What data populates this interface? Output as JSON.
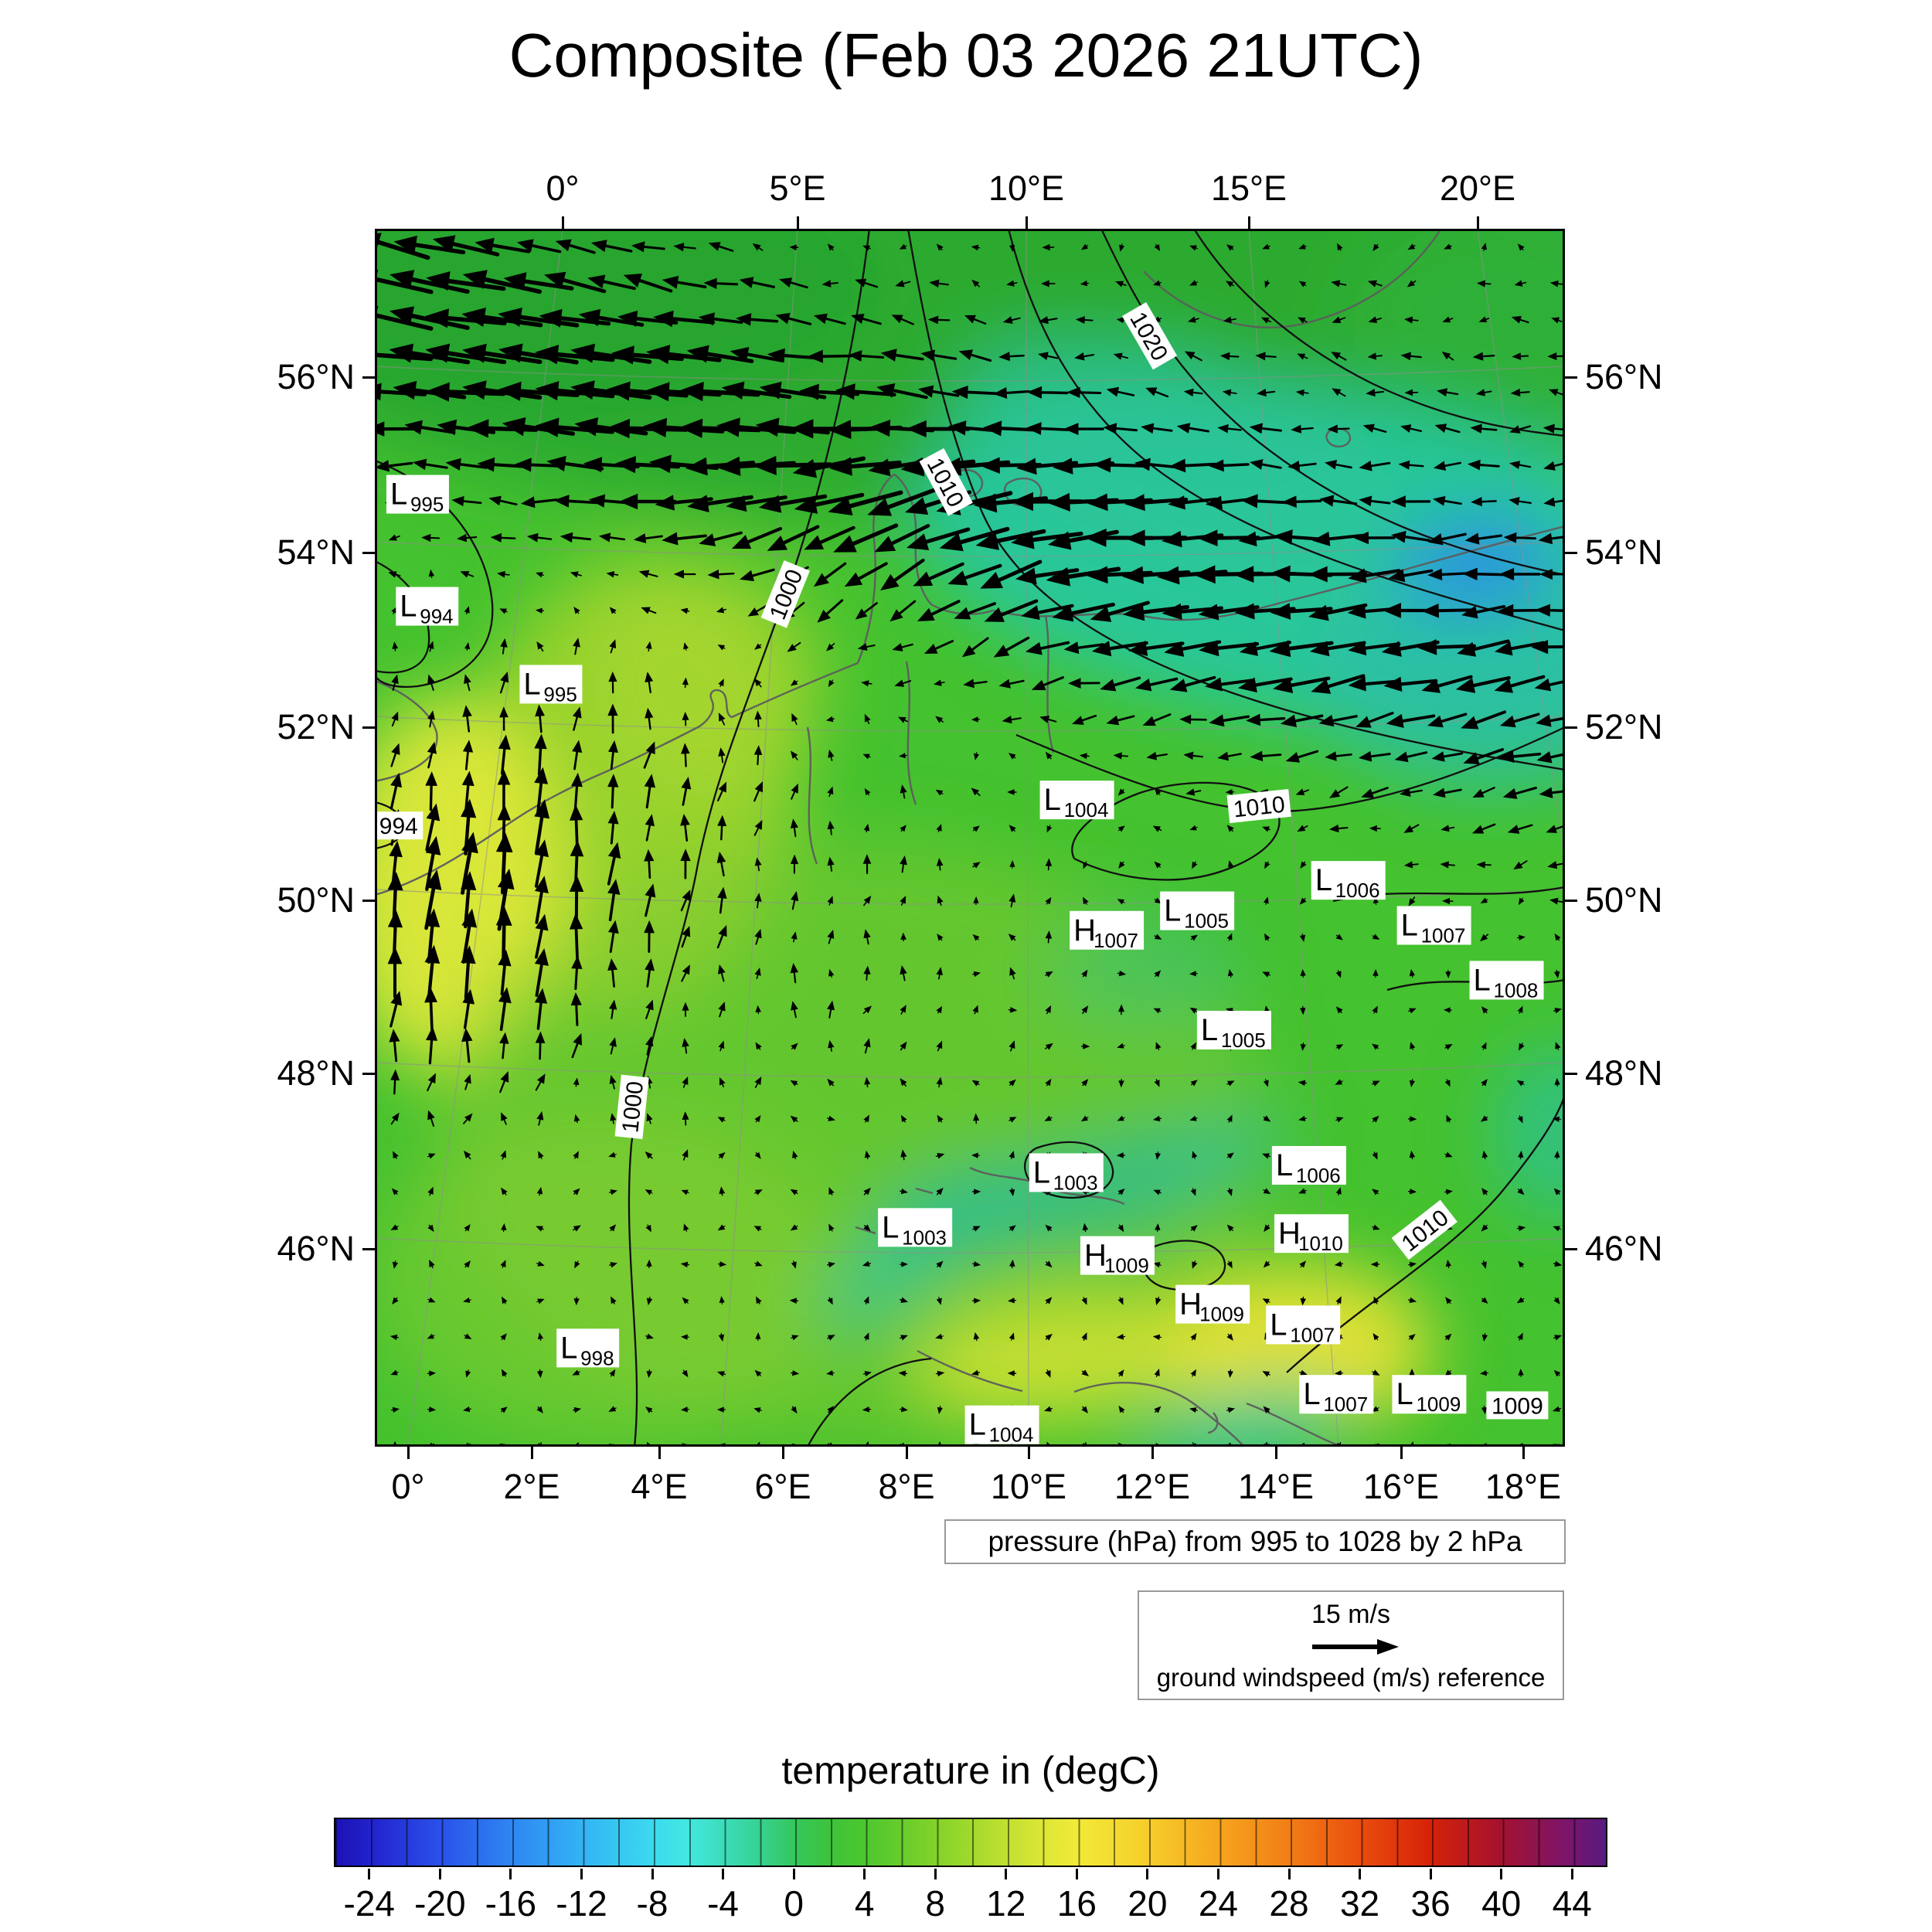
{
  "title": "Composite (Feb 03 2026 21UTC)",
  "pressure_caption": "pressure (hPa) from 995 to 1028 by 2 hPa",
  "wind_legend": {
    "reference_speed": "15 m/s",
    "caption": "ground windspeed (m/s) reference"
  },
  "colorbar": {
    "title": "temperature in (degC)",
    "min": -26,
    "max": 46,
    "tick_labels": [
      "-24",
      "-20",
      "-16",
      "-12",
      "-8",
      "-4",
      "0",
      "4",
      "8",
      "12",
      "16",
      "20",
      "24",
      "28",
      "32",
      "36",
      "40",
      "44"
    ],
    "gradient": [
      {
        "t": -26,
        "c": "#1b12b4"
      },
      {
        "t": -24,
        "c": "#2222cc"
      },
      {
        "t": -20,
        "c": "#2a52ea"
      },
      {
        "t": -16,
        "c": "#2e86f2"
      },
      {
        "t": -12,
        "c": "#33b4f4"
      },
      {
        "t": -8,
        "c": "#3cd9f0"
      },
      {
        "t": -6,
        "c": "#42e8e0"
      },
      {
        "t": -4,
        "c": "#3cdcba"
      },
      {
        "t": -2,
        "c": "#36d292"
      },
      {
        "t": 0,
        "c": "#35c75c"
      },
      {
        "t": 2,
        "c": "#3dc33b"
      },
      {
        "t": 4,
        "c": "#4cc72e"
      },
      {
        "t": 8,
        "c": "#82d22a"
      },
      {
        "t": 12,
        "c": "#c0e030"
      },
      {
        "t": 14,
        "c": "#dce636"
      },
      {
        "t": 16,
        "c": "#f2ea38"
      },
      {
        "t": 20,
        "c": "#f6ce2a"
      },
      {
        "t": 24,
        "c": "#f6a61f"
      },
      {
        "t": 28,
        "c": "#f27e16"
      },
      {
        "t": 32,
        "c": "#ea4e0e"
      },
      {
        "t": 36,
        "c": "#d62208"
      },
      {
        "t": 40,
        "c": "#a5122e"
      },
      {
        "t": 44,
        "c": "#78156e"
      },
      {
        "t": 46,
        "c": "#581a80"
      }
    ]
  },
  "axes": {
    "top": [
      "0°",
      "5°E",
      "10°E",
      "15°E",
      "20°E"
    ],
    "bottom": [
      "0°",
      "2°E",
      "4°E",
      "6°E",
      "8°E",
      "10°E",
      "12°E",
      "14°E",
      "16°E",
      "18°E"
    ],
    "left": [
      "56°N",
      "54°N",
      "52°N",
      "50°N",
      "48°N",
      "46°N"
    ],
    "right": [
      "56°N",
      "54°N",
      "52°N",
      "50°N",
      "48°N",
      "46°N"
    ]
  },
  "chart_data": {
    "type": "heatmap",
    "title": "Composite (Feb 03 2026 21UTC)",
    "fields": [
      "2m temperature (degC, color shading)",
      "surface pressure (hPa, black contours every 2 hPa from 995 to 1028)",
      "ground wind vectors (m/s, 15 m/s reference arrow)"
    ],
    "lon_ticks_top": [
      "0°",
      "5°E",
      "10°E",
      "15°E",
      "20°E"
    ],
    "lon_ticks_bottom": [
      "0°",
      "2°E",
      "4°E",
      "6°E",
      "8°E",
      "10°E",
      "12°E",
      "14°E",
      "16°E",
      "18°E"
    ],
    "lat_ticks": [
      "56°N",
      "54°N",
      "52°N",
      "50°N",
      "48°N",
      "46°N"
    ],
    "temperature_scale_degC": [
      -24,
      -20,
      -16,
      -12,
      -8,
      -4,
      0,
      4,
      8,
      12,
      16,
      20,
      24,
      28,
      32,
      36,
      40,
      44
    ],
    "pressure_contour_range": {
      "min": 995,
      "max": 1028,
      "interval": 2,
      "units": "hPa"
    },
    "wind_reference": {
      "speed_m_s": 15
    },
    "pressure_centers": [
      {
        "type": "L",
        "value": "995",
        "x_pct": 3.6,
        "y_pct": 21.8
      },
      {
        "type": "L",
        "value": "994",
        "x_pct": 4.4,
        "y_pct": 31.0
      },
      {
        "type": "L",
        "value": "995",
        "x_pct": 14.8,
        "y_pct": 37.4
      },
      {
        "type": "L",
        "value": "1004",
        "x_pct": 59.0,
        "y_pct": 46.9
      },
      {
        "type": "L",
        "value": "1006",
        "x_pct": 81.8,
        "y_pct": 53.5
      },
      {
        "type": "H",
        "value": "1007",
        "x_pct": 61.5,
        "y_pct": 57.6
      },
      {
        "type": "L",
        "value": "1005",
        "x_pct": 69.1,
        "y_pct": 56.0
      },
      {
        "type": "L",
        "value": "1007",
        "x_pct": 89.0,
        "y_pct": 57.2
      },
      {
        "type": "L",
        "value": "1008",
        "x_pct": 95.1,
        "y_pct": 61.7
      },
      {
        "type": "L",
        "value": "1005",
        "x_pct": 72.2,
        "y_pct": 65.8
      },
      {
        "type": "L",
        "value": "1003",
        "x_pct": 58.1,
        "y_pct": 77.5
      },
      {
        "type": "L",
        "value": "1006",
        "x_pct": 78.5,
        "y_pct": 76.9
      },
      {
        "type": "L",
        "value": "1003",
        "x_pct": 45.4,
        "y_pct": 82.0
      },
      {
        "type": "H",
        "value": "1009",
        "x_pct": 62.4,
        "y_pct": 84.3
      },
      {
        "type": "H",
        "value": "1010",
        "x_pct": 78.7,
        "y_pct": 82.5
      },
      {
        "type": "H",
        "value": "1009",
        "x_pct": 70.4,
        "y_pct": 88.3
      },
      {
        "type": "L",
        "value": "1007",
        "x_pct": 78.0,
        "y_pct": 90.0
      },
      {
        "type": "L",
        "value": "998",
        "x_pct": 17.9,
        "y_pct": 91.9
      },
      {
        "type": "L",
        "value": "1004",
        "x_pct": 52.7,
        "y_pct": 98.2
      },
      {
        "type": "L",
        "value": "1007",
        "x_pct": 80.8,
        "y_pct": 95.7
      },
      {
        "type": "L",
        "value": "1009",
        "x_pct": 88.6,
        "y_pct": 95.7
      }
    ],
    "contour_inline_labels": [
      {
        "text": "1020",
        "x_pct": 65.1,
        "y_pct": 8.8,
        "rot": 60
      },
      {
        "text": "1010",
        "x_pct": 48.0,
        "y_pct": 20.8,
        "rot": 62
      },
      {
        "text": "1000",
        "x_pct": 34.5,
        "y_pct": 30.0,
        "rot": -68
      },
      {
        "text": "1010",
        "x_pct": 74.3,
        "y_pct": 47.4,
        "rot": -6
      },
      {
        "text": "1000",
        "x_pct": 21.6,
        "y_pct": 72.1,
        "rot": -84
      },
      {
        "text": "1010",
        "x_pct": 88.2,
        "y_pct": 82.2,
        "rot": -38
      },
      {
        "text": "994",
        "x_pct": 2.0,
        "y_pct": 49.0,
        "rot": 0
      },
      {
        "text": "1009",
        "x_pct": 96.0,
        "y_pct": 96.6,
        "rot": 0
      }
    ]
  }
}
